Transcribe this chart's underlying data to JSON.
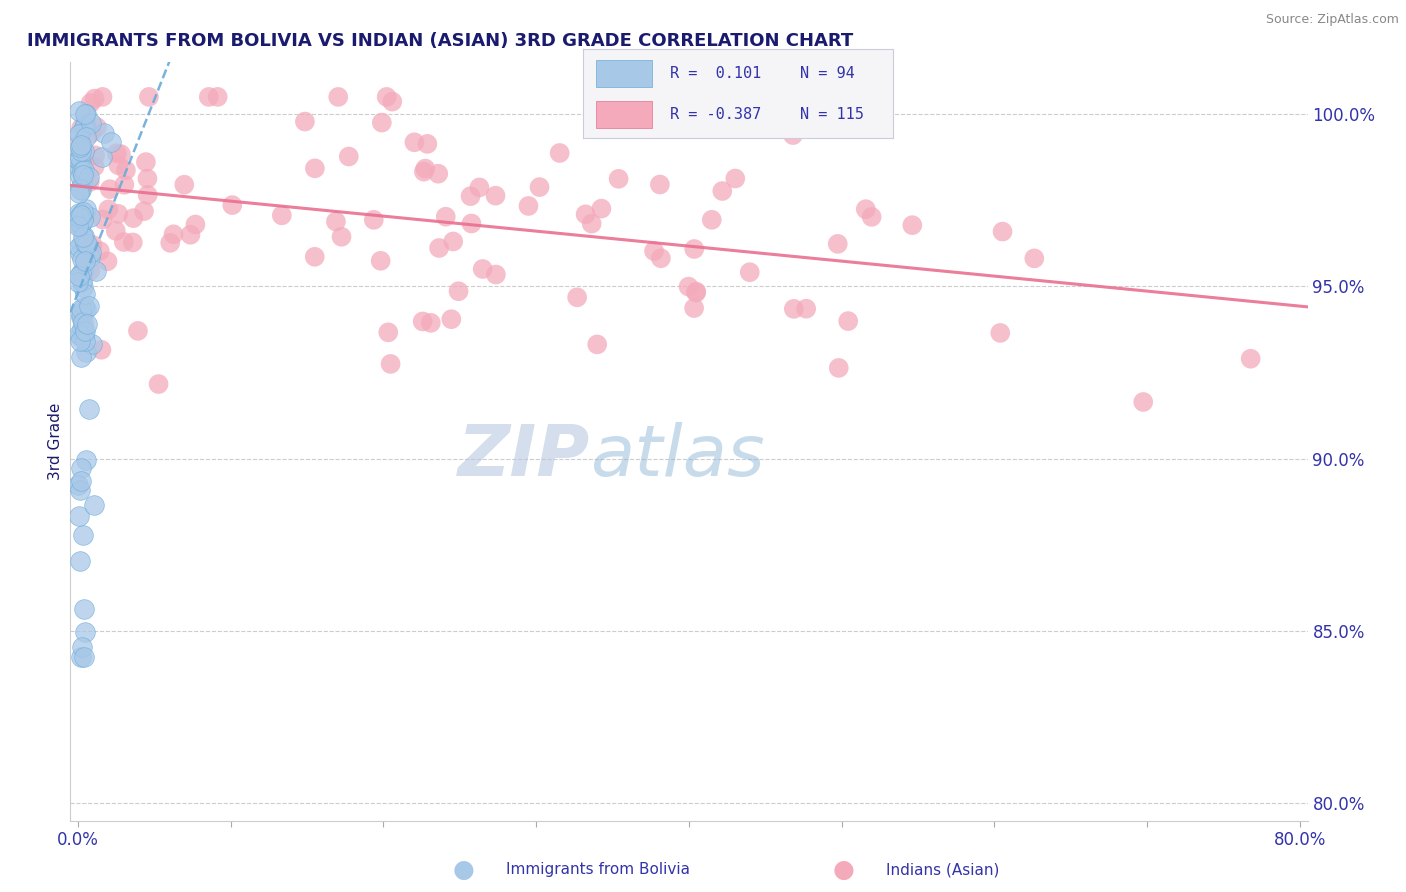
{
  "title": "IMMIGRANTS FROM BOLIVIA VS INDIAN (ASIAN) 3RD GRADE CORRELATION CHART",
  "source_text": "Source: ZipAtlas.com",
  "ylabel": "3rd Grade",
  "bolivia_R": 0.101,
  "bolivia_N": 94,
  "indian_R": -0.387,
  "indian_N": 115,
  "bolivia_color": "#a8c8e8",
  "bolivia_edge_color": "#6aabda",
  "indian_color": "#f4aabb",
  "indian_edge_color": "#e87090",
  "bolivia_trend_color": "#6aabda",
  "indian_trend_color": "#e87090",
  "title_color": "#1a1a6e",
  "axis_label_color": "#3333aa",
  "source_color": "#888888",
  "watermark_color_zip": "#b8c8e0",
  "watermark_color_atlas": "#90b8d8",
  "grid_color": "#cccccc",
  "legend_bg": "#f5f5f8",
  "legend_border": "#ccccdd",
  "background_color": "#ffffff",
  "xlim": [
    -0.005,
    0.805
  ],
  "ylim": [
    0.795,
    1.015
  ],
  "yticks": [
    0.8,
    0.85,
    0.9,
    0.95,
    1.0
  ],
  "ytick_labels": [
    "80.0%",
    "85.0%",
    "90.0%",
    "95.0%",
    "100.0%"
  ],
  "xticks": [
    0.0,
    0.1,
    0.2,
    0.3,
    0.4,
    0.5,
    0.6,
    0.7,
    0.8
  ],
  "xtick_labels": [
    "0.0%",
    "",
    "",
    "",
    "",
    "",
    "",
    "",
    "80.0%"
  ]
}
